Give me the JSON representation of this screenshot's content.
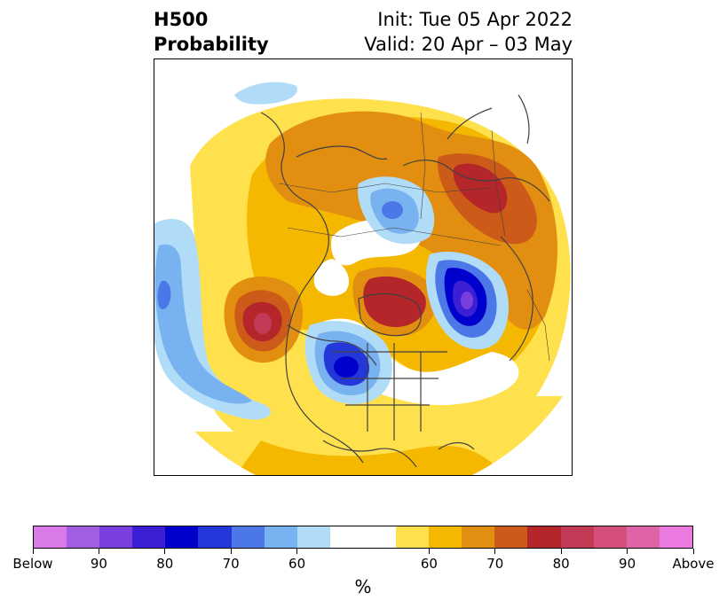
{
  "header": {
    "title_line1": "H500",
    "title_line2": "Probability",
    "init_line": "Init: Tue 05 Apr 2022",
    "valid_line": "Valid: 20 Apr – 03 May"
  },
  "map": {
    "projection": "north-polar-stereographic",
    "shading": "probability-contours"
  },
  "colorbar": {
    "colors": [
      "#d97ae8",
      "#a35de2",
      "#7b3edf",
      "#3c1fd4",
      "#0000cc",
      "#2438d9",
      "#4b78e6",
      "#79b2f0",
      "#b0dcf8",
      "#ffffff",
      "#ffffff",
      "#ffe14d",
      "#f5b800",
      "#e28e10",
      "#cc5b1a",
      "#b4262a",
      "#c23a55",
      "#d4507a",
      "#e063a8",
      "#ea7ae0"
    ],
    "ticks": [
      "Below",
      "90",
      "80",
      "70",
      "60",
      "60",
      "70",
      "80",
      "90",
      "Above"
    ],
    "units": "%"
  }
}
